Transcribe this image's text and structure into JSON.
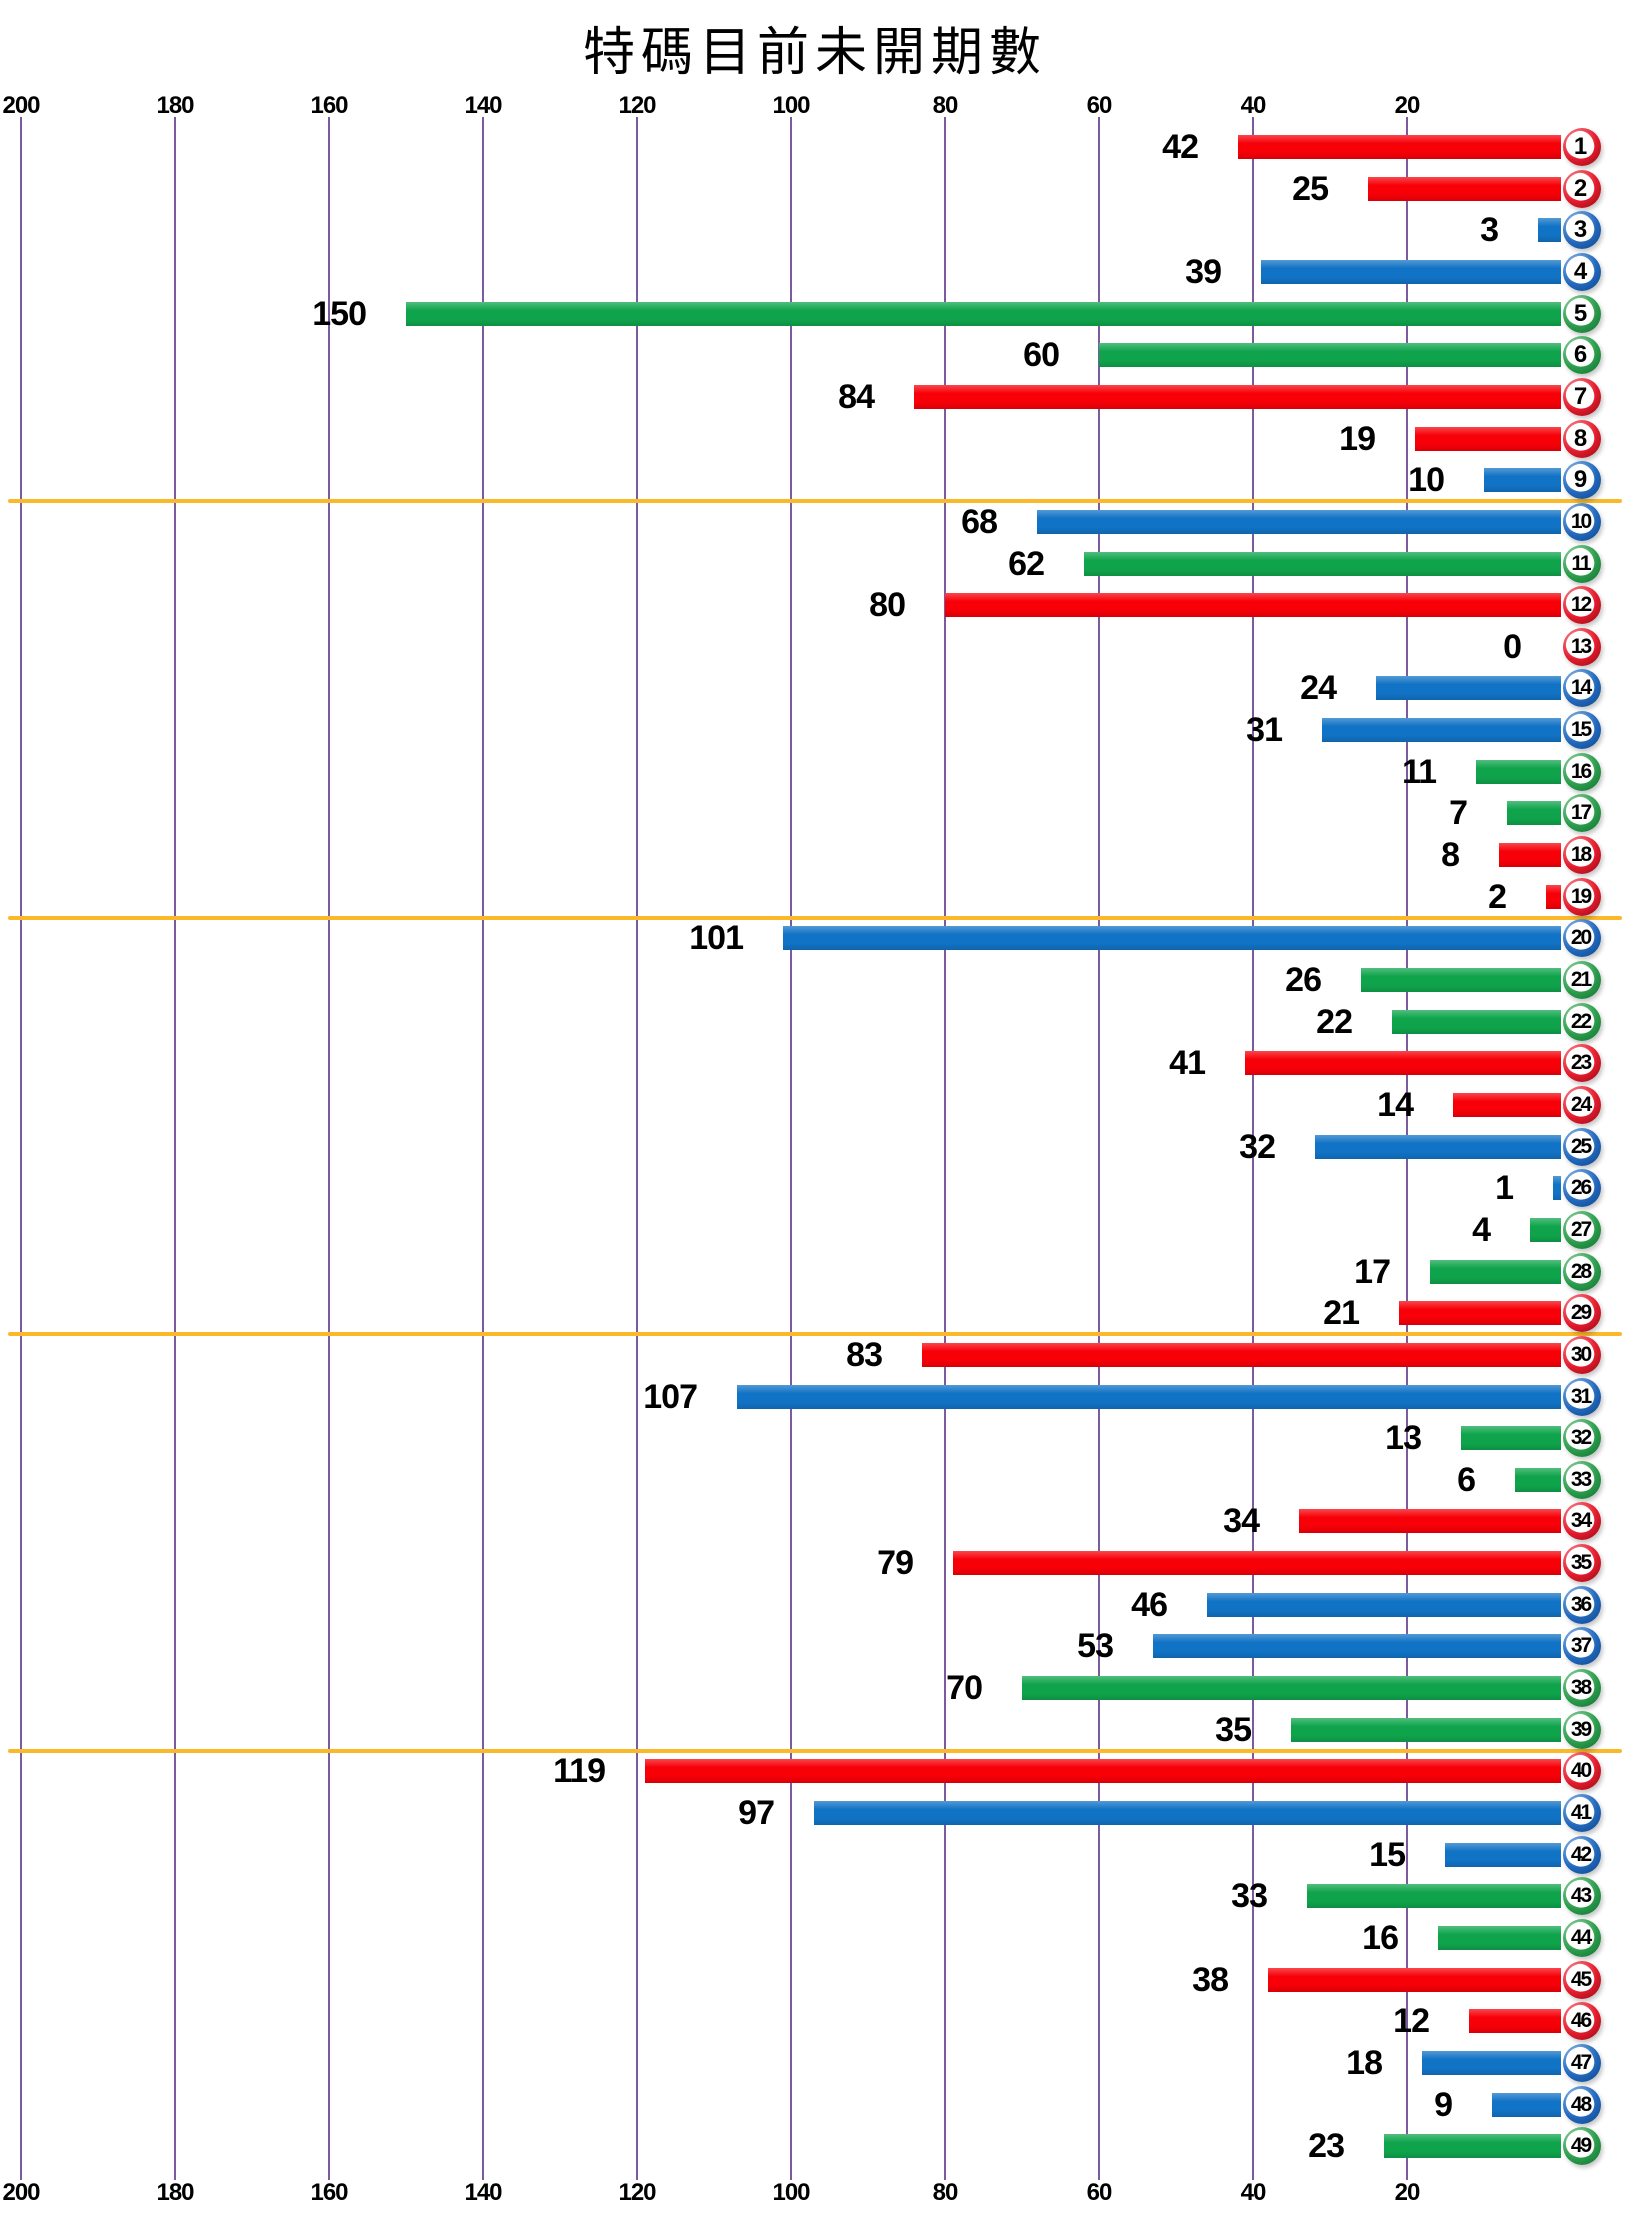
{
  "title": "特碼目前未開期數",
  "chart_data": {
    "type": "bar",
    "orientation": "horizontal_right_to_left",
    "title": "特碼目前未開期數",
    "categories": [
      1,
      2,
      3,
      4,
      5,
      6,
      7,
      8,
      9,
      10,
      11,
      12,
      13,
      14,
      15,
      16,
      17,
      18,
      19,
      20,
      21,
      22,
      23,
      24,
      25,
      26,
      27,
      28,
      29,
      30,
      31,
      32,
      33,
      34,
      35,
      36,
      37,
      38,
      39,
      40,
      41,
      42,
      43,
      44,
      45,
      46,
      47,
      48,
      49
    ],
    "values": [
      42,
      25,
      3,
      39,
      150,
      60,
      84,
      19,
      10,
      68,
      62,
      80,
      0,
      24,
      31,
      11,
      7,
      8,
      2,
      101,
      26,
      22,
      41,
      14,
      32,
      1,
      4,
      17,
      21,
      83,
      107,
      13,
      6,
      34,
      79,
      46,
      53,
      70,
      35,
      119,
      97,
      15,
      33,
      16,
      38,
      12,
      18,
      9,
      23
    ],
    "ball_colors": [
      "red",
      "red",
      "blue",
      "blue",
      "green",
      "green",
      "red",
      "red",
      "blue",
      "blue",
      "green",
      "red",
      "red",
      "blue",
      "blue",
      "green",
      "green",
      "red",
      "red",
      "blue",
      "green",
      "green",
      "red",
      "red",
      "blue",
      "blue",
      "green",
      "green",
      "red",
      "red",
      "blue",
      "green",
      "green",
      "red",
      "red",
      "blue",
      "blue",
      "green",
      "green",
      "red",
      "blue",
      "blue",
      "green",
      "green",
      "red",
      "red",
      "blue",
      "blue",
      "green"
    ],
    "x_ticks_top": [
      "200",
      "180",
      "160",
      "140",
      "120",
      "100",
      "80",
      "60",
      "40",
      "20"
    ],
    "x_ticks_bottom": [
      "200",
      "180",
      "160",
      "140",
      "120",
      "100",
      "80",
      "60",
      "40",
      "20"
    ],
    "xlim": [
      0,
      200
    ],
    "grid": "vertical lines every 20",
    "legend": "none",
    "group_separators_after_categories": [
      9,
      19,
      29,
      39
    ]
  },
  "colors": {
    "bar_red": "#F70008",
    "bar_blue": "#1173C5",
    "bar_green": "#0FA44C",
    "gridline": "#7C5A9E",
    "separator": "#FBB92A",
    "text": "#000000",
    "background": "#FFFFFF"
  }
}
